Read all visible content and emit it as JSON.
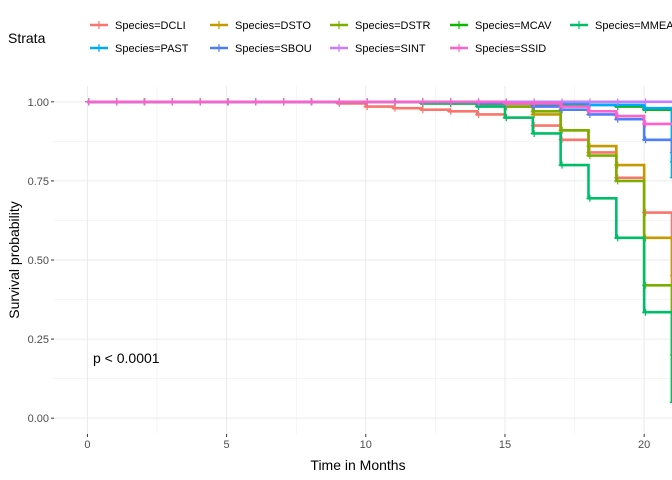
{
  "chart_data": {
    "type": "line",
    "subtype": "kaplan-meier step",
    "xlabel": "Time in Months",
    "ylabel": "Survival probability",
    "xlim": [
      -1.2,
      21
    ],
    "ylim": [
      -0.05,
      1.05
    ],
    "xticks": [
      0,
      5,
      10,
      15,
      20
    ],
    "yticks": [
      0.0,
      0.25,
      0.5,
      0.75,
      1.0
    ],
    "ytick_labels": [
      "0.00",
      "0.25",
      "0.50",
      "0.75",
      "1.00"
    ],
    "grid": true,
    "legend_title": "Strata",
    "legend_position": "top",
    "annotation": "p < 0.0001",
    "series": [
      {
        "name": "Species=DCLI",
        "color": "#F8766D",
        "x": [
          0,
          9,
          10,
          11,
          12,
          13,
          14,
          15,
          16,
          17,
          18,
          19,
          20,
          21
        ],
        "y": [
          1.0,
          0.995,
          0.985,
          0.98,
          0.975,
          0.97,
          0.96,
          0.95,
          0.925,
          0.88,
          0.84,
          0.76,
          0.65,
          0.45
        ],
        "censor_x": [
          0,
          1,
          2,
          3,
          4,
          5,
          6,
          7,
          8,
          9,
          10,
          11,
          12,
          13,
          14,
          15,
          16,
          17,
          18,
          19,
          20,
          21
        ]
      },
      {
        "name": "Species=DSTO",
        "color": "#C49A00",
        "x": [
          0,
          12,
          14,
          15,
          16,
          17,
          18,
          19,
          20,
          21
        ],
        "y": [
          1.0,
          0.995,
          0.99,
          0.985,
          0.96,
          0.91,
          0.86,
          0.8,
          0.57,
          0.2
        ],
        "censor_x": [
          0,
          1,
          2,
          3,
          4,
          5,
          6,
          7,
          8,
          9,
          10,
          11,
          12,
          13,
          14,
          15,
          16,
          17,
          18,
          19,
          20,
          21
        ]
      },
      {
        "name": "Species=DSTR",
        "color": "#7CAE00",
        "x": [
          0,
          13,
          15,
          16,
          17,
          18,
          19,
          20,
          21
        ],
        "y": [
          1.0,
          0.995,
          0.985,
          0.97,
          0.91,
          0.83,
          0.75,
          0.42,
          0.05
        ],
        "censor_x": [
          0,
          1,
          2,
          3,
          4,
          5,
          6,
          7,
          8,
          9,
          10,
          11,
          12,
          13,
          14,
          15,
          16,
          17,
          18,
          19,
          20,
          21
        ]
      },
      {
        "name": "Species=MCAV",
        "color": "#0CB702",
        "x": [
          0,
          14,
          16,
          18,
          19,
          20,
          21
        ],
        "y": [
          1.0,
          0.995,
          0.99,
          0.99,
          0.985,
          0.975,
          0.81
        ],
        "censor_x": [
          0,
          1,
          2,
          3,
          4,
          5,
          6,
          7,
          8,
          9,
          10,
          11,
          12,
          13,
          14,
          15,
          16,
          17,
          18,
          19,
          20,
          21
        ]
      },
      {
        "name": "Species=MMEA",
        "color": "#00BE67",
        "x": [
          0,
          12,
          14,
          15,
          16,
          17,
          18,
          19,
          20,
          21
        ],
        "y": [
          1.0,
          0.995,
          0.985,
          0.95,
          0.9,
          0.8,
          0.695,
          0.57,
          0.335,
          0.05
        ],
        "censor_x": [
          0,
          1,
          2,
          3,
          4,
          5,
          6,
          7,
          8,
          9,
          10,
          11,
          12,
          13,
          14,
          15,
          16,
          17,
          18,
          19,
          20,
          21
        ]
      },
      {
        "name": "Species=PAST",
        "color": "#00A9FF",
        "x": [
          0,
          16,
          18,
          20,
          21
        ],
        "y": [
          1.0,
          0.995,
          0.99,
          0.98,
          0.76
        ],
        "censor_x": [
          0,
          1,
          2,
          3,
          4,
          5,
          6,
          7,
          8,
          9,
          10,
          11,
          12,
          13,
          14,
          15,
          16,
          17,
          18,
          19,
          20,
          21
        ]
      },
      {
        "name": "Species=SBOU",
        "color": "#4F7FF8",
        "x": [
          0,
          14,
          16,
          17,
          18,
          19,
          20,
          21
        ],
        "y": [
          1.0,
          0.995,
          0.985,
          0.975,
          0.96,
          0.945,
          0.88,
          0.84
        ],
        "censor_x": [
          0,
          1,
          2,
          3,
          4,
          5,
          6,
          7,
          8,
          9,
          10,
          11,
          12,
          13,
          14,
          15,
          16,
          17,
          18,
          19,
          20,
          21
        ]
      },
      {
        "name": "Species=SINT",
        "color": "#C77CFF",
        "x": [
          0,
          21
        ],
        "y": [
          1.0,
          1.0
        ],
        "censor_x": [
          0,
          1,
          2,
          3,
          4,
          5,
          6,
          7,
          8,
          9,
          10,
          11,
          12,
          13,
          14,
          15,
          16,
          17,
          18,
          19,
          20,
          21
        ]
      },
      {
        "name": "Species=SSID",
        "color": "#FF61CC",
        "x": [
          0,
          15,
          17,
          18,
          19,
          20,
          21
        ],
        "y": [
          1.0,
          0.995,
          0.985,
          0.97,
          0.955,
          0.93,
          0.93
        ],
        "censor_x": [
          0,
          1,
          2,
          3,
          4,
          5,
          6,
          7,
          8,
          9,
          10,
          11,
          12,
          13,
          14,
          15,
          16,
          17,
          18,
          19,
          20,
          21
        ]
      }
    ]
  }
}
